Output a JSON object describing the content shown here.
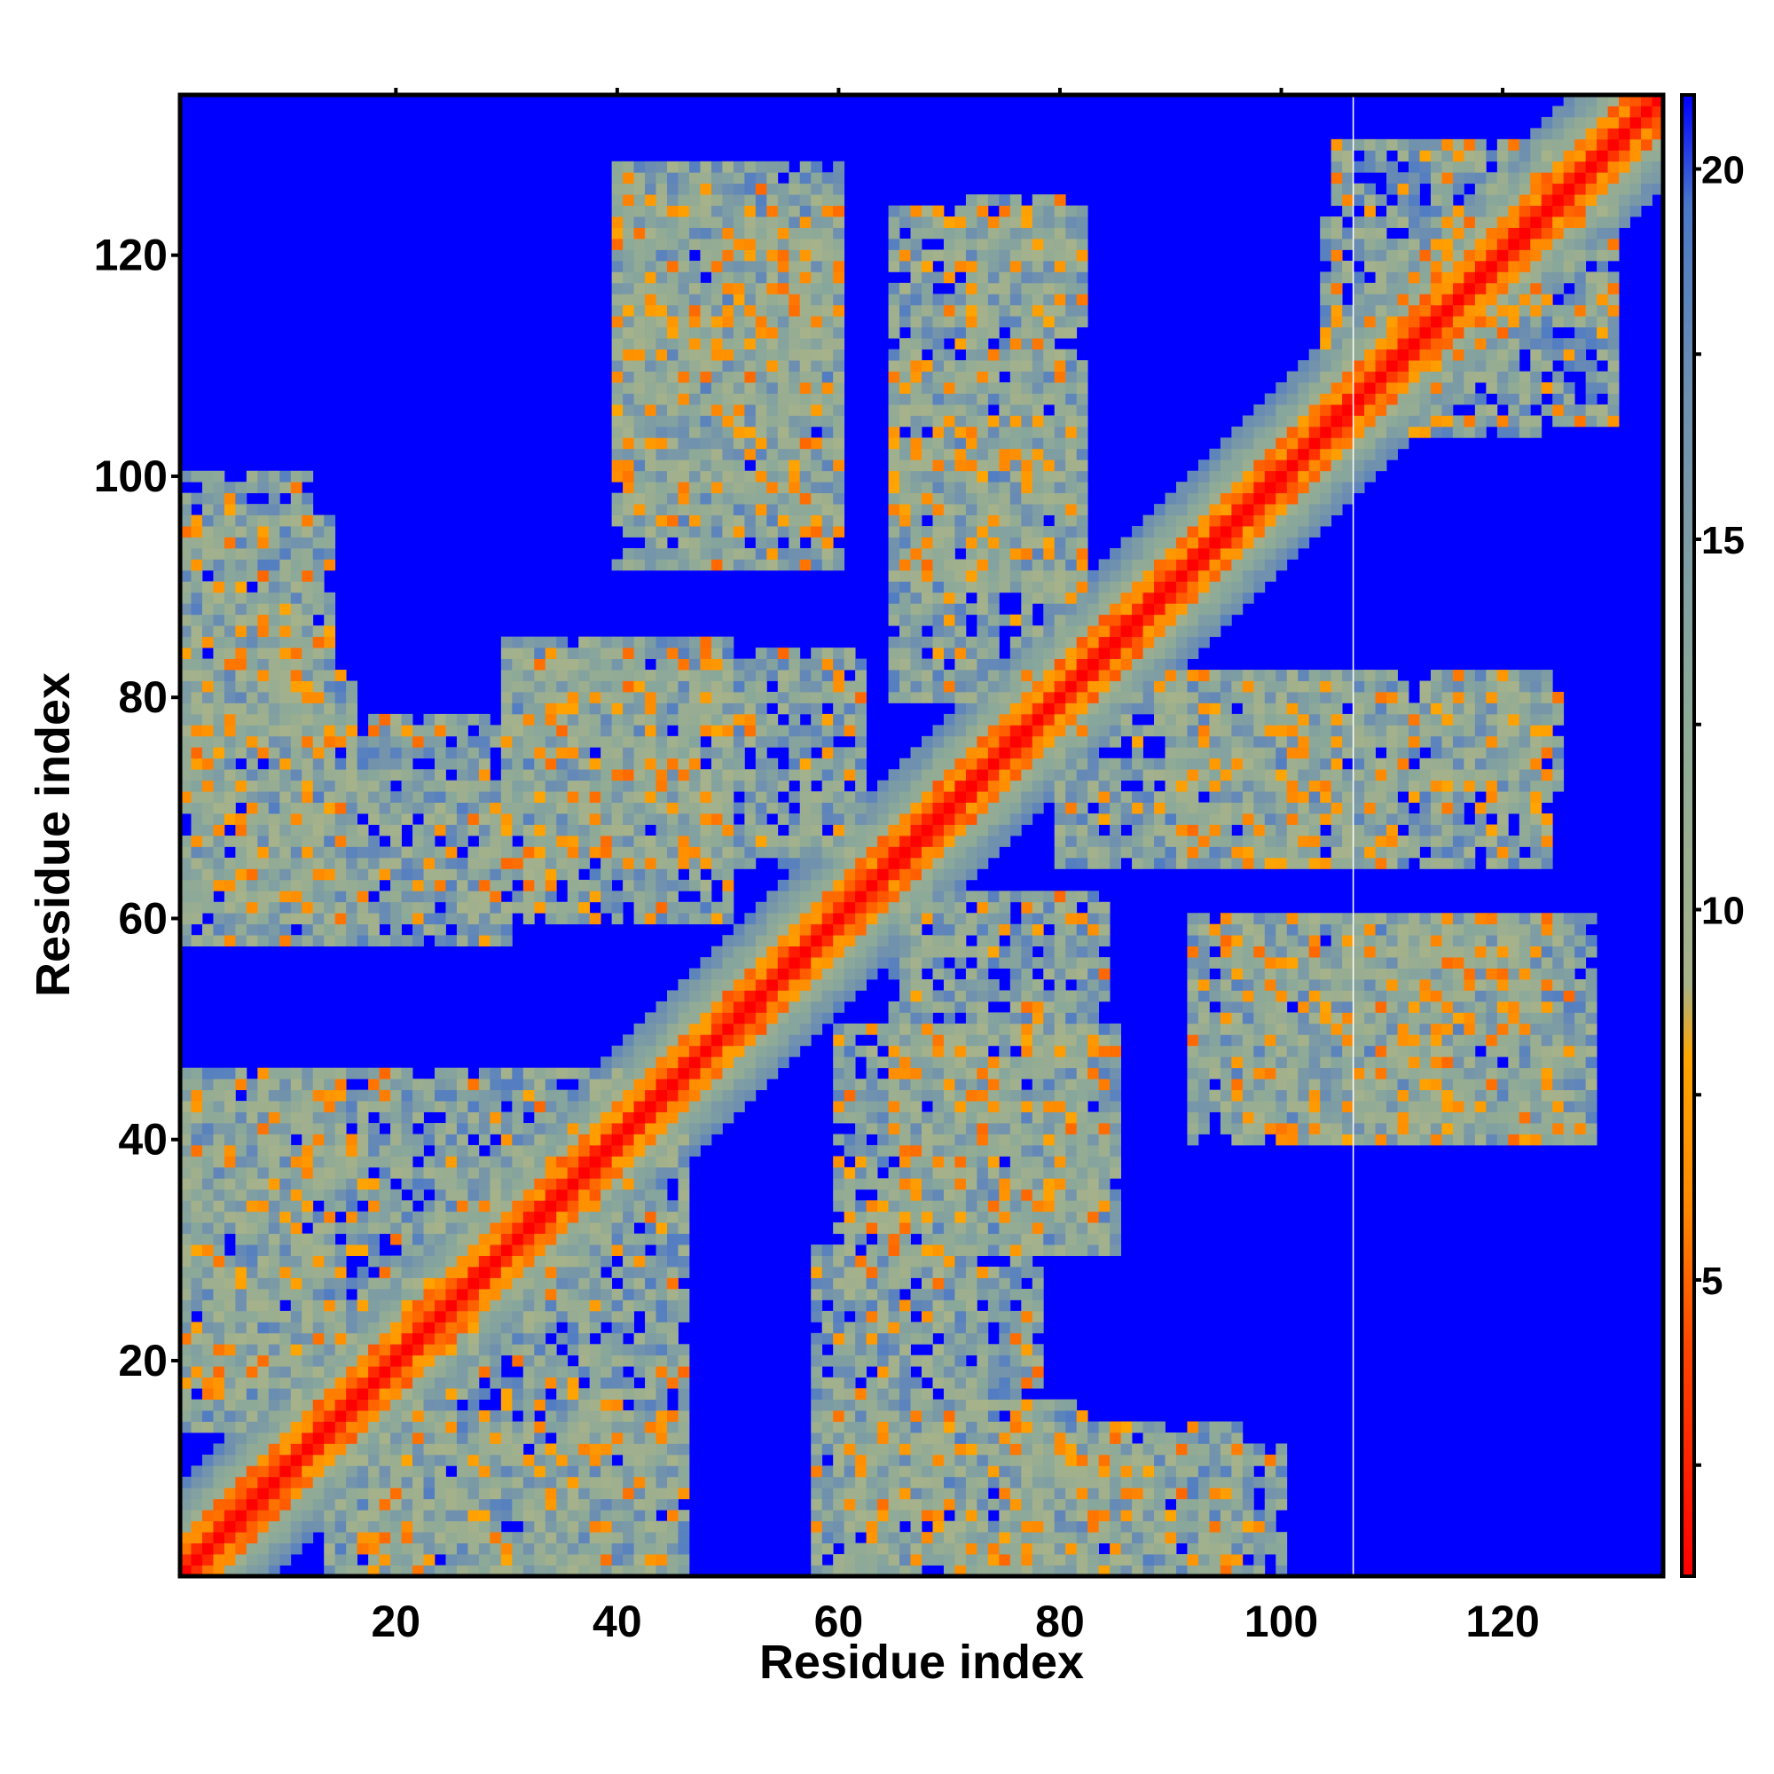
{
  "chart_data": {
    "type": "heatmap",
    "title": "",
    "xlabel": "Residue index",
    "ylabel": "Residue index",
    "xlim": [
      0.5,
      134.5
    ],
    "ylim": [
      0.5,
      134.5
    ],
    "x_ticks": [
      20,
      40,
      60,
      80,
      100,
      120
    ],
    "y_ticks": [
      20,
      40,
      60,
      80,
      100,
      120
    ],
    "grid": false,
    "colorbar": {
      "range": [
        1,
        21
      ],
      "ticks": [
        5,
        10,
        15,
        20
      ],
      "placement": "right",
      "colors": [
        {
          "value": 1,
          "color": "#ff0000"
        },
        {
          "value": 4,
          "color": "#ff4400"
        },
        {
          "value": 6,
          "color": "#ff8800"
        },
        {
          "value": 8,
          "color": "#ffa500"
        },
        {
          "value": 9,
          "color": "#a6b28a"
        },
        {
          "value": 13,
          "color": "#8aa89a"
        },
        {
          "value": 17,
          "color": "#6e8fb0"
        },
        {
          "value": 19.5,
          "color": "#4a78c8"
        },
        {
          "value": 21,
          "color": "#0000ff"
        }
      ]
    },
    "n_residues": 134,
    "gap_column": 107,
    "contact_regions": [
      {
        "x": [
          1,
          134
        ],
        "y": [
          1,
          134
        ],
        "kind": "diagonal-band",
        "width": 8
      },
      {
        "x": [
          1,
          14
        ],
        "y": [
          14,
          45
        ],
        "kind": "cluster"
      },
      {
        "x": [
          1,
          16
        ],
        "y": [
          60,
          82
        ],
        "kind": "cluster"
      },
      {
        "x": [
          1,
          12
        ],
        "y": [
          82,
          100
        ],
        "kind": "cluster"
      },
      {
        "x": [
          18,
          46
        ],
        "y": [
          1,
          40
        ],
        "kind": "cluster"
      },
      {
        "x": [
          30,
          50
        ],
        "y": [
          60,
          85
        ],
        "kind": "cluster"
      },
      {
        "x": [
          40,
          60
        ],
        "y": [
          95,
          128
        ],
        "kind": "cluster"
      },
      {
        "x": [
          58,
          78
        ],
        "y": [
          1,
          30
        ],
        "kind": "cluster"
      },
      {
        "x": [
          65,
          84
        ],
        "y": [
          30,
          62
        ],
        "kind": "cluster"
      },
      {
        "x": [
          65,
          82
        ],
        "y": [
          80,
          110
        ],
        "kind": "cluster"
      },
      {
        "x": [
          72,
          80
        ],
        "y": [
          110,
          125
        ],
        "kind": "cluster"
      },
      {
        "x": [
          78,
          96
        ],
        "y": [
          1,
          14
        ],
        "kind": "cluster"
      },
      {
        "x": [
          92,
          126
        ],
        "y": [
          40,
          60
        ],
        "kind": "cluster"
      },
      {
        "x": [
          90,
          124
        ],
        "y": [
          65,
          82
        ],
        "kind": "cluster"
      },
      {
        "x": [
          104,
          130
        ],
        "y": [
          105,
          124
        ],
        "kind": "cluster"
      }
    ]
  }
}
